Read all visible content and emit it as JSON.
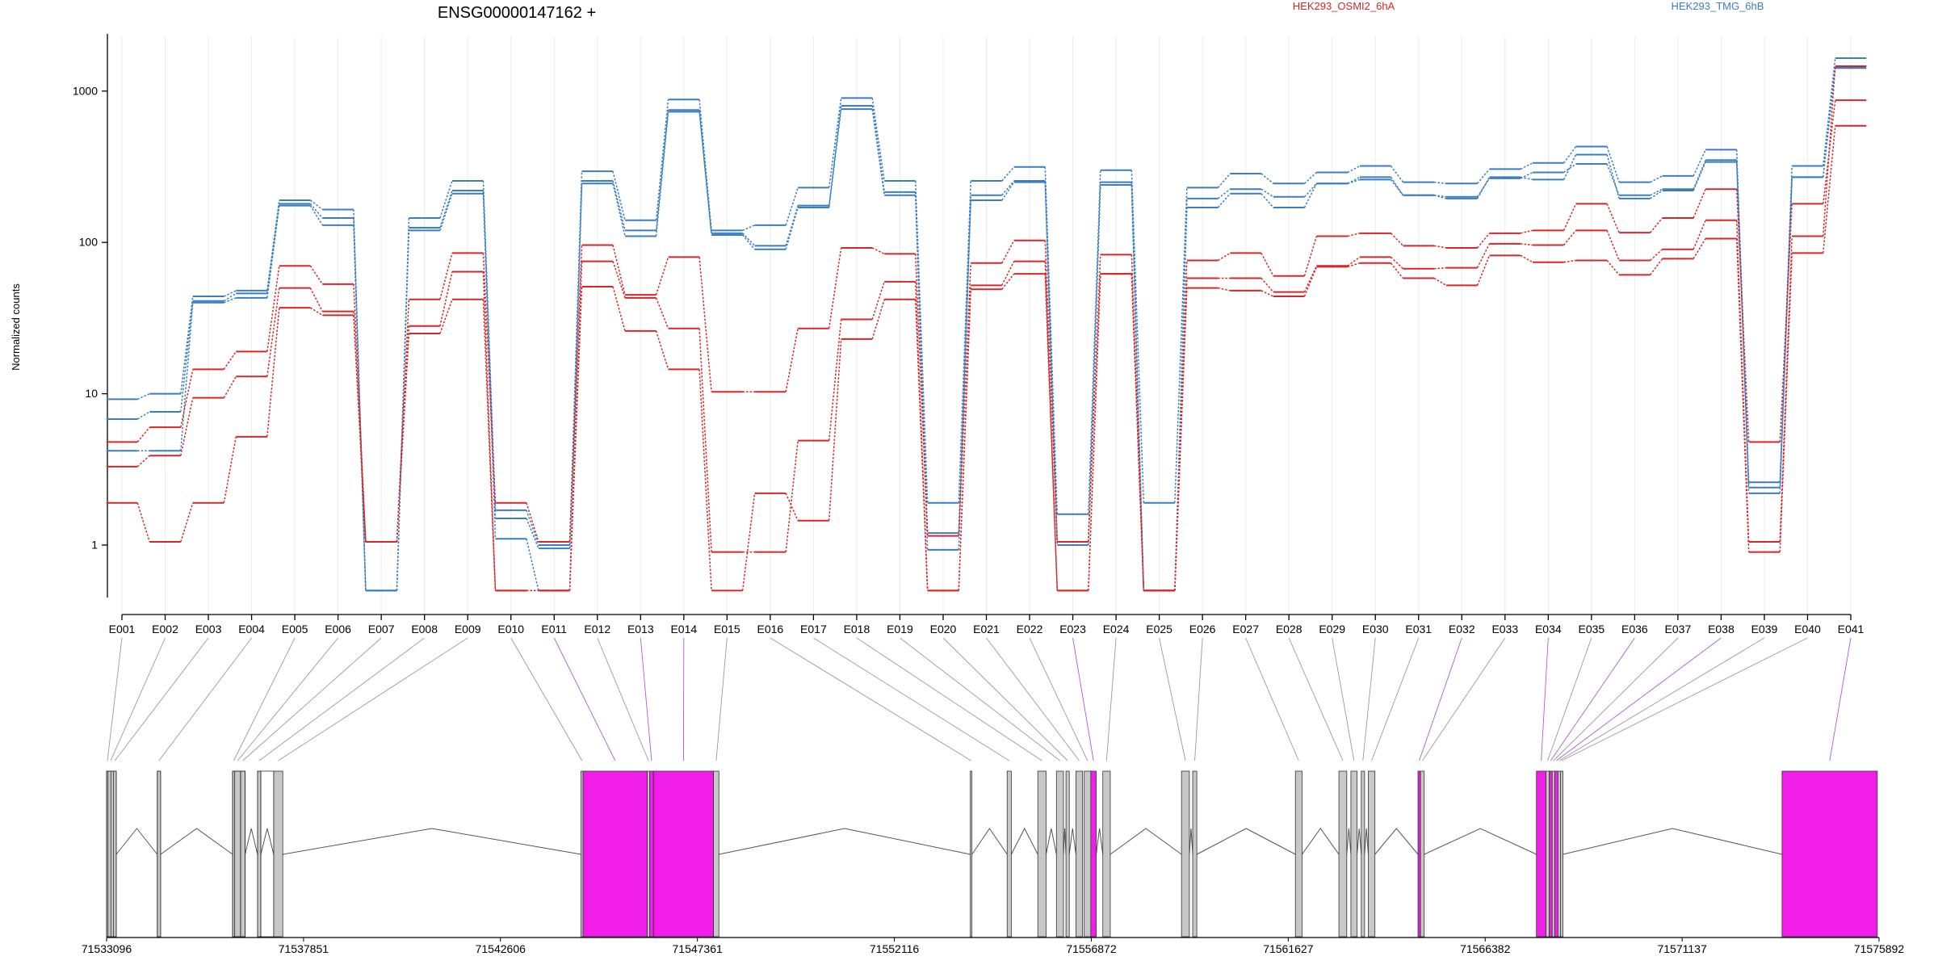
{
  "chart_data": {
    "type": "line",
    "title": "ENSG00000147162 +",
    "ylabel": "Normalized counts",
    "yscale": "log",
    "yticks": [
      1,
      10,
      100,
      1000
    ],
    "ytick_labels": [
      "1",
      "10",
      "100",
      "1000"
    ],
    "ylim": [
      0.45,
      2300
    ],
    "categories": [
      "E001",
      "E002",
      "E003",
      "E004",
      "E005",
      "E006",
      "E007",
      "E008",
      "E009",
      "E010",
      "E011",
      "E012",
      "E013",
      "E014",
      "E015",
      "E016",
      "E017",
      "E018",
      "E019",
      "E020",
      "E021",
      "E022",
      "E023",
      "E024",
      "E025",
      "E026",
      "E027",
      "E028",
      "E029",
      "E030",
      "E031",
      "E032",
      "E033",
      "E034",
      "E035",
      "E036",
      "E037",
      "E038",
      "E039",
      "E040",
      "E041"
    ],
    "legend": [
      {
        "name": "HEK293_OSMI2_6hA",
        "color": "#d62728"
      },
      {
        "name": "HEK293_TMG_6hB",
        "color": "#3a7ec0"
      }
    ],
    "series": [
      {
        "group": "HEK293_TMG_6hB",
        "color": "#3a7ec0",
        "values": [
          9.2,
          10,
          44,
          48,
          190,
          165,
          0.5,
          145,
          255,
          1.7,
          1,
          295,
          140,
          880,
          120,
          130,
          230,
          900,
          255,
          1.9,
          255,
          315,
          1.6,
          300,
          1.9,
          230,
          285,
          245,
          290,
          320,
          250,
          245,
          305,
          335,
          430,
          250,
          275,
          410,
          2.6,
          320,
          1650
        ]
      },
      {
        "group": "HEK293_TMG_6hB",
        "color": "#3a7ec0",
        "values": [
          6.8,
          7.6,
          41,
          46,
          180,
          145,
          0.5,
          125,
          220,
          1.5,
          0.95,
          255,
          120,
          750,
          115,
          95,
          175,
          800,
          215,
          1.2,
          205,
          255,
          1.05,
          250,
          0.5,
          195,
          225,
          200,
          245,
          270,
          205,
          200,
          265,
          290,
          330,
          205,
          225,
          350,
          2.4,
          270,
          1450
        ]
      },
      {
        "group": "HEK293_TMG_6hB",
        "color": "#3a7ec0",
        "values": [
          4.2,
          4.2,
          40,
          43,
          175,
          130,
          0.5,
          120,
          210,
          1.1,
          0.5,
          245,
          110,
          730,
          112,
          90,
          170,
          760,
          205,
          0.93,
          190,
          250,
          1.0,
          240,
          0.5,
          170,
          210,
          170,
          245,
          260,
          205,
          195,
          270,
          260,
          380,
          195,
          220,
          340,
          2.2,
          270,
          1420
        ]
      },
      {
        "group": "HEK293_OSMI2_6hA",
        "color": "#d62728",
        "values": [
          4.8,
          6,
          14.5,
          19,
          70,
          53,
          1.05,
          42,
          85,
          1.9,
          1.05,
          96,
          45,
          80,
          10.3,
          10.3,
          27,
          92,
          84,
          1.15,
          73,
          103,
          1.05,
          83,
          0.5,
          76,
          85,
          60,
          110,
          115,
          95,
          92,
          115,
          120,
          180,
          116,
          145,
          225,
          4.8,
          180,
          870
        ]
      },
      {
        "group": "HEK293_OSMI2_6hA",
        "color": "#d62728",
        "values": [
          3.3,
          3.9,
          9.4,
          13,
          50,
          35,
          1.05,
          28,
          64,
          0.5,
          0.5,
          75,
          43,
          27,
          0.9,
          0.9,
          4.9,
          31,
          55,
          0.5,
          52,
          75,
          0.5,
          62,
          0.5,
          58,
          58,
          47,
          70,
          80,
          67,
          68,
          98,
          96,
          120,
          76,
          90,
          140,
          1.05,
          110,
          1460
        ]
      },
      {
        "group": "HEK293_OSMI2_6hA",
        "color": "#d62728",
        "values": [
          1.9,
          1.05,
          1.9,
          5.2,
          37,
          33,
          1.05,
          25,
          42,
          0.5,
          0.5,
          51,
          26,
          14.5,
          0.5,
          2.2,
          1.45,
          23,
          42,
          0.5,
          49,
          62,
          0.5,
          62,
          0.5,
          50,
          48,
          44,
          69,
          73,
          58,
          52,
          82,
          74,
          76,
          61,
          78,
          106,
          0.9,
          85,
          590
        ]
      }
    ],
    "genome_axis": {
      "ticks": [
        "71533096",
        "71537851",
        "71542606",
        "71547361",
        "71552116",
        "71556872",
        "71561627",
        "71566382",
        "71571137",
        "71575892"
      ],
      "tick_values": [
        71533096,
        71537851,
        71542606,
        71547361,
        71552116,
        71556872,
        71561627,
        71566382,
        71571137,
        71575892
      ],
      "range": [
        71533096,
        71575892
      ]
    },
    "exon_blocks": [
      {
        "id": "E001",
        "start": 71533096,
        "end": 71533130,
        "highlight": false
      },
      {
        "id": "E002",
        "start": 71533130,
        "end": 71533260,
        "highlight": false
      },
      {
        "id": "E003",
        "start": 71533260,
        "end": 71533330,
        "highlight": false
      },
      {
        "id": "E004",
        "start": 71534320,
        "end": 71534400,
        "highlight": false
      },
      {
        "id": "E005",
        "start": 71536140,
        "end": 71536190,
        "highlight": false
      },
      {
        "id": "E006",
        "start": 71536190,
        "end": 71536330,
        "highlight": false
      },
      {
        "id": "E007",
        "start": 71536330,
        "end": 71536440,
        "highlight": false
      },
      {
        "id": "E008",
        "start": 71536740,
        "end": 71536820,
        "highlight": false
      },
      {
        "id": "E009",
        "start": 71537130,
        "end": 71537350,
        "highlight": false
      },
      {
        "id": "E010",
        "start": 71544550,
        "end": 71544600,
        "highlight": false
      },
      {
        "id": "E011",
        "start": 71544600,
        "end": 71546150,
        "highlight": true
      },
      {
        "id": "E012",
        "start": 71546150,
        "end": 71546210,
        "highlight": false
      },
      {
        "id": "E013",
        "start": 71546210,
        "end": 71546300,
        "highlight": true
      },
      {
        "id": "E014",
        "start": 71546300,
        "end": 71547750,
        "highlight": true
      },
      {
        "id": "E015",
        "start": 71547750,
        "end": 71547880,
        "highlight": false
      },
      {
        "id": "E016",
        "start": 71553950,
        "end": 71553990,
        "highlight": false
      },
      {
        "id": "E017",
        "start": 71554840,
        "end": 71554940,
        "highlight": false
      },
      {
        "id": "E018",
        "start": 71555580,
        "end": 71555780,
        "highlight": false
      },
      {
        "id": "E019",
        "start": 71556030,
        "end": 71556200,
        "highlight": false
      },
      {
        "id": "E020",
        "start": 71556260,
        "end": 71556340,
        "highlight": false
      },
      {
        "id": "E021",
        "start": 71556500,
        "end": 71556660,
        "highlight": false
      },
      {
        "id": "E022",
        "start": 71556700,
        "end": 71556860,
        "highlight": false
      },
      {
        "id": "E023",
        "start": 71556860,
        "end": 71556990,
        "highlight": true
      },
      {
        "id": "E024",
        "start": 71557150,
        "end": 71557330,
        "highlight": false
      },
      {
        "id": "E025",
        "start": 71559050,
        "end": 71559240,
        "highlight": false
      },
      {
        "id": "E026",
        "start": 71559320,
        "end": 71559420,
        "highlight": false
      },
      {
        "id": "E027",
        "start": 71561800,
        "end": 71561960,
        "highlight": false
      },
      {
        "id": "E028",
        "start": 71562850,
        "end": 71563040,
        "highlight": false
      },
      {
        "id": "E029",
        "start": 71563140,
        "end": 71563290,
        "highlight": false
      },
      {
        "id": "E030",
        "start": 71563390,
        "end": 71563470,
        "highlight": false
      },
      {
        "id": "E031",
        "start": 71563560,
        "end": 71563720,
        "highlight": false
      },
      {
        "id": "E032",
        "start": 71564760,
        "end": 71564820,
        "highlight": true
      },
      {
        "id": "E033",
        "start": 71564820,
        "end": 71564910,
        "highlight": false
      },
      {
        "id": "E034",
        "start": 71567620,
        "end": 71567850,
        "highlight": true
      },
      {
        "id": "E035",
        "start": 71567850,
        "end": 71567930,
        "highlight": false
      },
      {
        "id": "E036",
        "start": 71567930,
        "end": 71568000,
        "highlight": true
      },
      {
        "id": "E037",
        "start": 71568000,
        "end": 71568060,
        "highlight": false
      },
      {
        "id": "E038",
        "start": 71568060,
        "end": 71568140,
        "highlight": true
      },
      {
        "id": "E039",
        "start": 71568140,
        "end": 71568200,
        "highlight": false
      },
      {
        "id": "E040",
        "start": 71568200,
        "end": 71568260,
        "highlight": false
      },
      {
        "id": "E041",
        "start": 71573550,
        "end": 71575850,
        "highlight": true
      }
    ],
    "transcripts": [
      [
        71533096,
        71533330,
        71536140,
        71536440
      ],
      [
        71533096,
        71533200,
        71534320,
        71534400,
        71536140,
        71536330
      ],
      [
        71536330,
        71536440,
        71536740,
        71536820
      ],
      [
        71536820,
        71537130,
        71537350
      ]
    ],
    "intron_span": [
      71533096,
      71575850
    ],
    "colors": {
      "highlight": "#f01ee8",
      "exon": "#c8c8c8",
      "connector": "#9a9a9a",
      "connector_highlight": "#b05cc8"
    }
  }
}
